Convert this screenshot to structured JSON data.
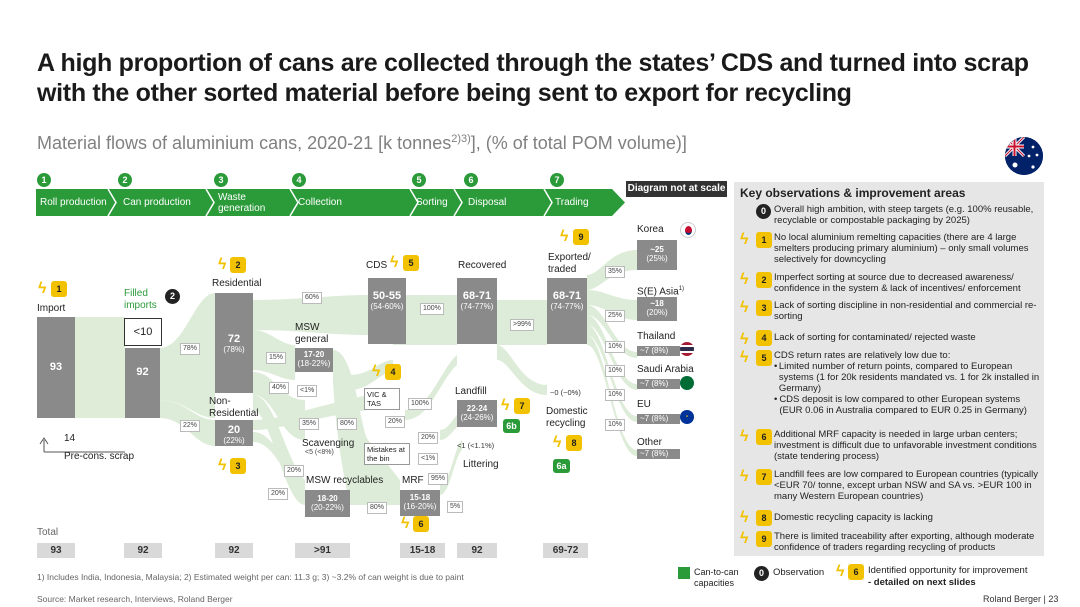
{
  "title": "A high proportion of cans are collected through the states’ CDS and turned into scrap with the other sorted material before being sent to export for recycling",
  "subtitle": "Material flows of aluminium cans, 2020-21 [k tonnes",
  "subtitle_sup": "2)3)",
  "subtitle_tail": "], (% of total POM volume)]",
  "stages": [
    {
      "num": "1",
      "label": "Roll production"
    },
    {
      "num": "2",
      "label": "Can production"
    },
    {
      "num": "3",
      "label": "Waste generation"
    },
    {
      "num": "4",
      "label": "Collection"
    },
    {
      "num": "5",
      "label": "Sorting"
    },
    {
      "num": "6",
      "label": "Disposal"
    },
    {
      "num": "7",
      "label": "Trading"
    }
  ],
  "not_to_scale": "Diagram not at scale",
  "nodes": {
    "import_label": "Import",
    "import_value": "93",
    "filled_imports_label": "Filled imports",
    "filled_imports_value": "<10",
    "can_value": "92",
    "pre_cons_value": "14",
    "pre_cons_label": "Pre-cons. scrap",
    "residential_label": "Residential",
    "residential_value": "72",
    "residential_pct": "(78%)",
    "non_residential_label": "Non-Residential",
    "non_residential_value": "20",
    "non_residential_pct": "(22%)",
    "msw_general_label": "MSW general",
    "msw_general_value": "17-20",
    "msw_general_pct": "(18-22%)",
    "scavenging_label": "Scavenging",
    "scavenging_value": "<5 (<8%)",
    "msw_recyclables_label": "MSW recyclables",
    "msw_recyclables_value": "18-20",
    "msw_recyclables_pct": "(20-22%)",
    "cds_label": "CDS",
    "cds_value": "50-55",
    "cds_pct": "(54-60%)",
    "vic_tas_label": "VIC & TAS",
    "mistakes_label": "Mistakes at the bin",
    "mrf_label": "MRF",
    "mrf_value": "15-18",
    "mrf_pct": "(16-20%)",
    "recovered_label": "Recovered",
    "recovered_value": "68-71",
    "recovered_pct": "(74-77%)",
    "landfill_label": "Landfill",
    "landfill_value": "22-24",
    "landfill_pct": "(24-26%)",
    "littering_label": "Littering",
    "littering_value": "<1 (<1.1%)",
    "exported_label": "Exported/ traded",
    "exported_value": "68-71",
    "exported_pct": "(74-77%)",
    "domestic_label": "Domestic recycling",
    "domestic_value": "~0 (~0%)"
  },
  "percent_tags": {
    "p78": "78%",
    "p22": "22%",
    "p60": "60%",
    "p15": "15%",
    "p40": "40%",
    "p1a": "<1%",
    "p35": "35%",
    "p80a": "80%",
    "p100a": "100%",
    "p100b": "100%",
    "p20a": "20%",
    "p20b": "20%",
    "p20c": "20%",
    "p1b": "<1%",
    "p95": "95%",
    "p80b": "80%",
    "p5": "5%",
    "p20d": "20%",
    "p99": ">99%",
    "p35b": "35%",
    "p25": "25%",
    "p10a": "10%",
    "p10b": "10%",
    "p10c": "10%",
    "p10d": "10%"
  },
  "destinations": [
    {
      "name": "Korea",
      "value": "~25",
      "pct": "(25%)"
    },
    {
      "name": "S(E) Asia",
      "sup": "1)",
      "value": "~18",
      "pct": "(20%)"
    },
    {
      "name": "Thailand",
      "value": "~7 (8%)"
    },
    {
      "name": "Saudi Arabia",
      "value": "~7 (8%)"
    },
    {
      "name": "EU",
      "value": "~7 (8%)"
    },
    {
      "name": "Other",
      "value": "~7 (8%)"
    }
  ],
  "totals_label": "Total",
  "totals": [
    "93",
    "92",
    "92",
    ">91",
    "15-18",
    "92",
    "69-72"
  ],
  "markers": {
    "y1": "1",
    "y2": "2",
    "y3": "3",
    "y4": "4",
    "y5": "5",
    "y6": "6",
    "y7": "7",
    "y8": "8",
    "y9": "9",
    "dark2": "2",
    "g6a": "6a",
    "g6b": "6b"
  },
  "observations_title": "Key observations & improvement areas",
  "observations": [
    {
      "id": "0",
      "type": "observation",
      "text": "Overall high ambition, with steep targets (e.g. 100% reusable, recyclable or compostable packaging by 2025)"
    },
    {
      "id": "1",
      "type": "opportunity",
      "text": "No local aluminium remelting capacities (there are 4 large smelters producing primary aluminium) – only small volumes selectively for downcycling"
    },
    {
      "id": "2",
      "type": "opportunity",
      "text": "Imperfect sorting at source due to decreased awareness/ confidence in the system & lack of incentives/ enforcement"
    },
    {
      "id": "3",
      "type": "opportunity",
      "text": "Lack of sorting discipline in non-residential and commercial re-sorting"
    },
    {
      "id": "4",
      "type": "opportunity",
      "text": "Lack of sorting for contaminated/ rejected waste"
    },
    {
      "id": "5",
      "type": "opportunity",
      "text": "CDS return rates are relatively low due to:",
      "bullets": [
        "Limited number of return points, compared to European systems (1 for 20k residents mandated vs. 1 for 2k installed in Germany)",
        "CDS deposit is low compared to other European systems (EUR 0.06 in Australia compared to EUR 0.25 in Germany)"
      ]
    },
    {
      "id": "6",
      "type": "opportunity",
      "text": "Additional MRF capacity is needed in large urban centers; investment is difficult due to unfavorable investment conditions (state tendering process)"
    },
    {
      "id": "7",
      "type": "opportunity",
      "text": "Landfill fees are low compared to European countries (typically <EUR 70/ tonne, except urban NSW and SA vs. >EUR 100 in many Western European countries)"
    },
    {
      "id": "8",
      "type": "opportunity",
      "text": "Domestic recycling capacity is lacking"
    },
    {
      "id": "9",
      "type": "opportunity",
      "text": "There is limited traceability after exporting, although moderate confidence of traders regarding recycling of products"
    }
  ],
  "legend": {
    "can_to_can": "Can-to-can capacities",
    "observation": "Observation",
    "observation_marker": "0",
    "opportunity": "Identified opportunity for improvement",
    "opportunity_marker": "6",
    "opportunity_sub": "- detailed on next slides"
  },
  "footnote": "1) Includes India, Indonesia, Malaysia; 2) Estimated weight per can: 11.3 g; 3) ~3.2% of can weight is due to paint",
  "source": "Source: Market research, Interviews, Roland Berger",
  "brand": "Roland Berger",
  "page_number": "23",
  "colors": {
    "green": "#2b9b3a",
    "grey_bar": "#8a8a8a",
    "flow": "#dcebd6",
    "yellow": "#f2c200",
    "panel": "#e6e6e6"
  }
}
